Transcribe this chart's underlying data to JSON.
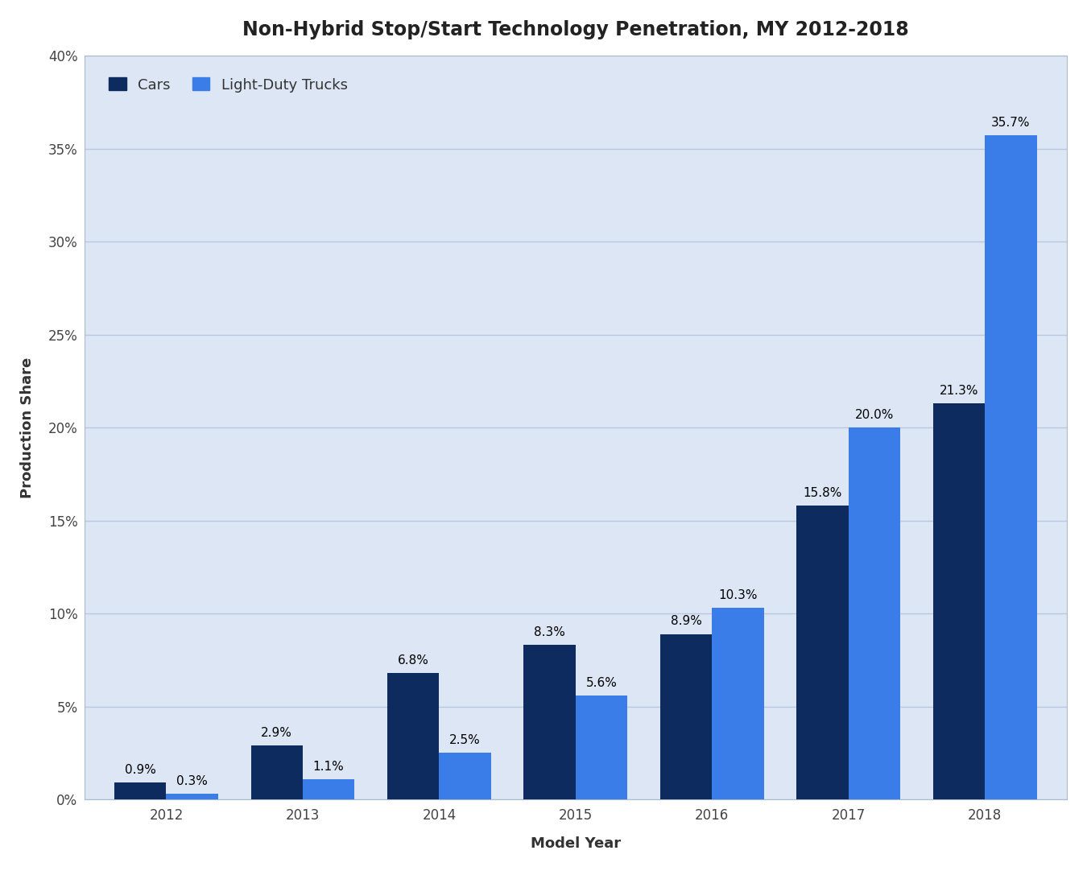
{
  "title": "Non-Hybrid Stop/Start Technology Penetration, MY 2012-2018",
  "xlabel": "Model Year",
  "ylabel": "Production Share",
  "years": [
    2012,
    2013,
    2014,
    2015,
    2016,
    2017,
    2018
  ],
  "cars": [
    0.9,
    2.9,
    6.8,
    8.3,
    8.9,
    15.8,
    21.3
  ],
  "trucks": [
    0.3,
    1.1,
    2.5,
    5.6,
    10.3,
    20.0,
    35.7
  ],
  "cars_labels": [
    "0.9%",
    "2.9%",
    "6.8%",
    "8.3%",
    "8.9%",
    "15.8%",
    "21.3%"
  ],
  "trucks_labels": [
    "0.3%",
    "1.1%",
    "2.5%",
    "5.6%",
    "10.3%",
    "20.0%",
    "35.7%"
  ],
  "car_color": "#0d2b5e",
  "truck_color": "#3a7de8",
  "figure_bg_color": "#ffffff",
  "plot_bg_color": "#dce6f5",
  "ylim": [
    0,
    40
  ],
  "yticks": [
    0,
    5,
    10,
    15,
    20,
    25,
    30,
    35,
    40
  ],
  "ytick_labels": [
    "0%",
    "5%",
    "10%",
    "15%",
    "20%",
    "25%",
    "30%",
    "35%",
    "40%"
  ],
  "legend_cars": "Cars",
  "legend_trucks": "Light-Duty Trucks",
  "title_fontsize": 17,
  "label_fontsize": 13,
  "tick_fontsize": 12,
  "bar_label_fontsize": 11,
  "legend_fontsize": 13,
  "bar_width": 0.38,
  "grid_color": "#b8c8e0",
  "spine_color": "#aabbcc",
  "tick_color": "#444444"
}
